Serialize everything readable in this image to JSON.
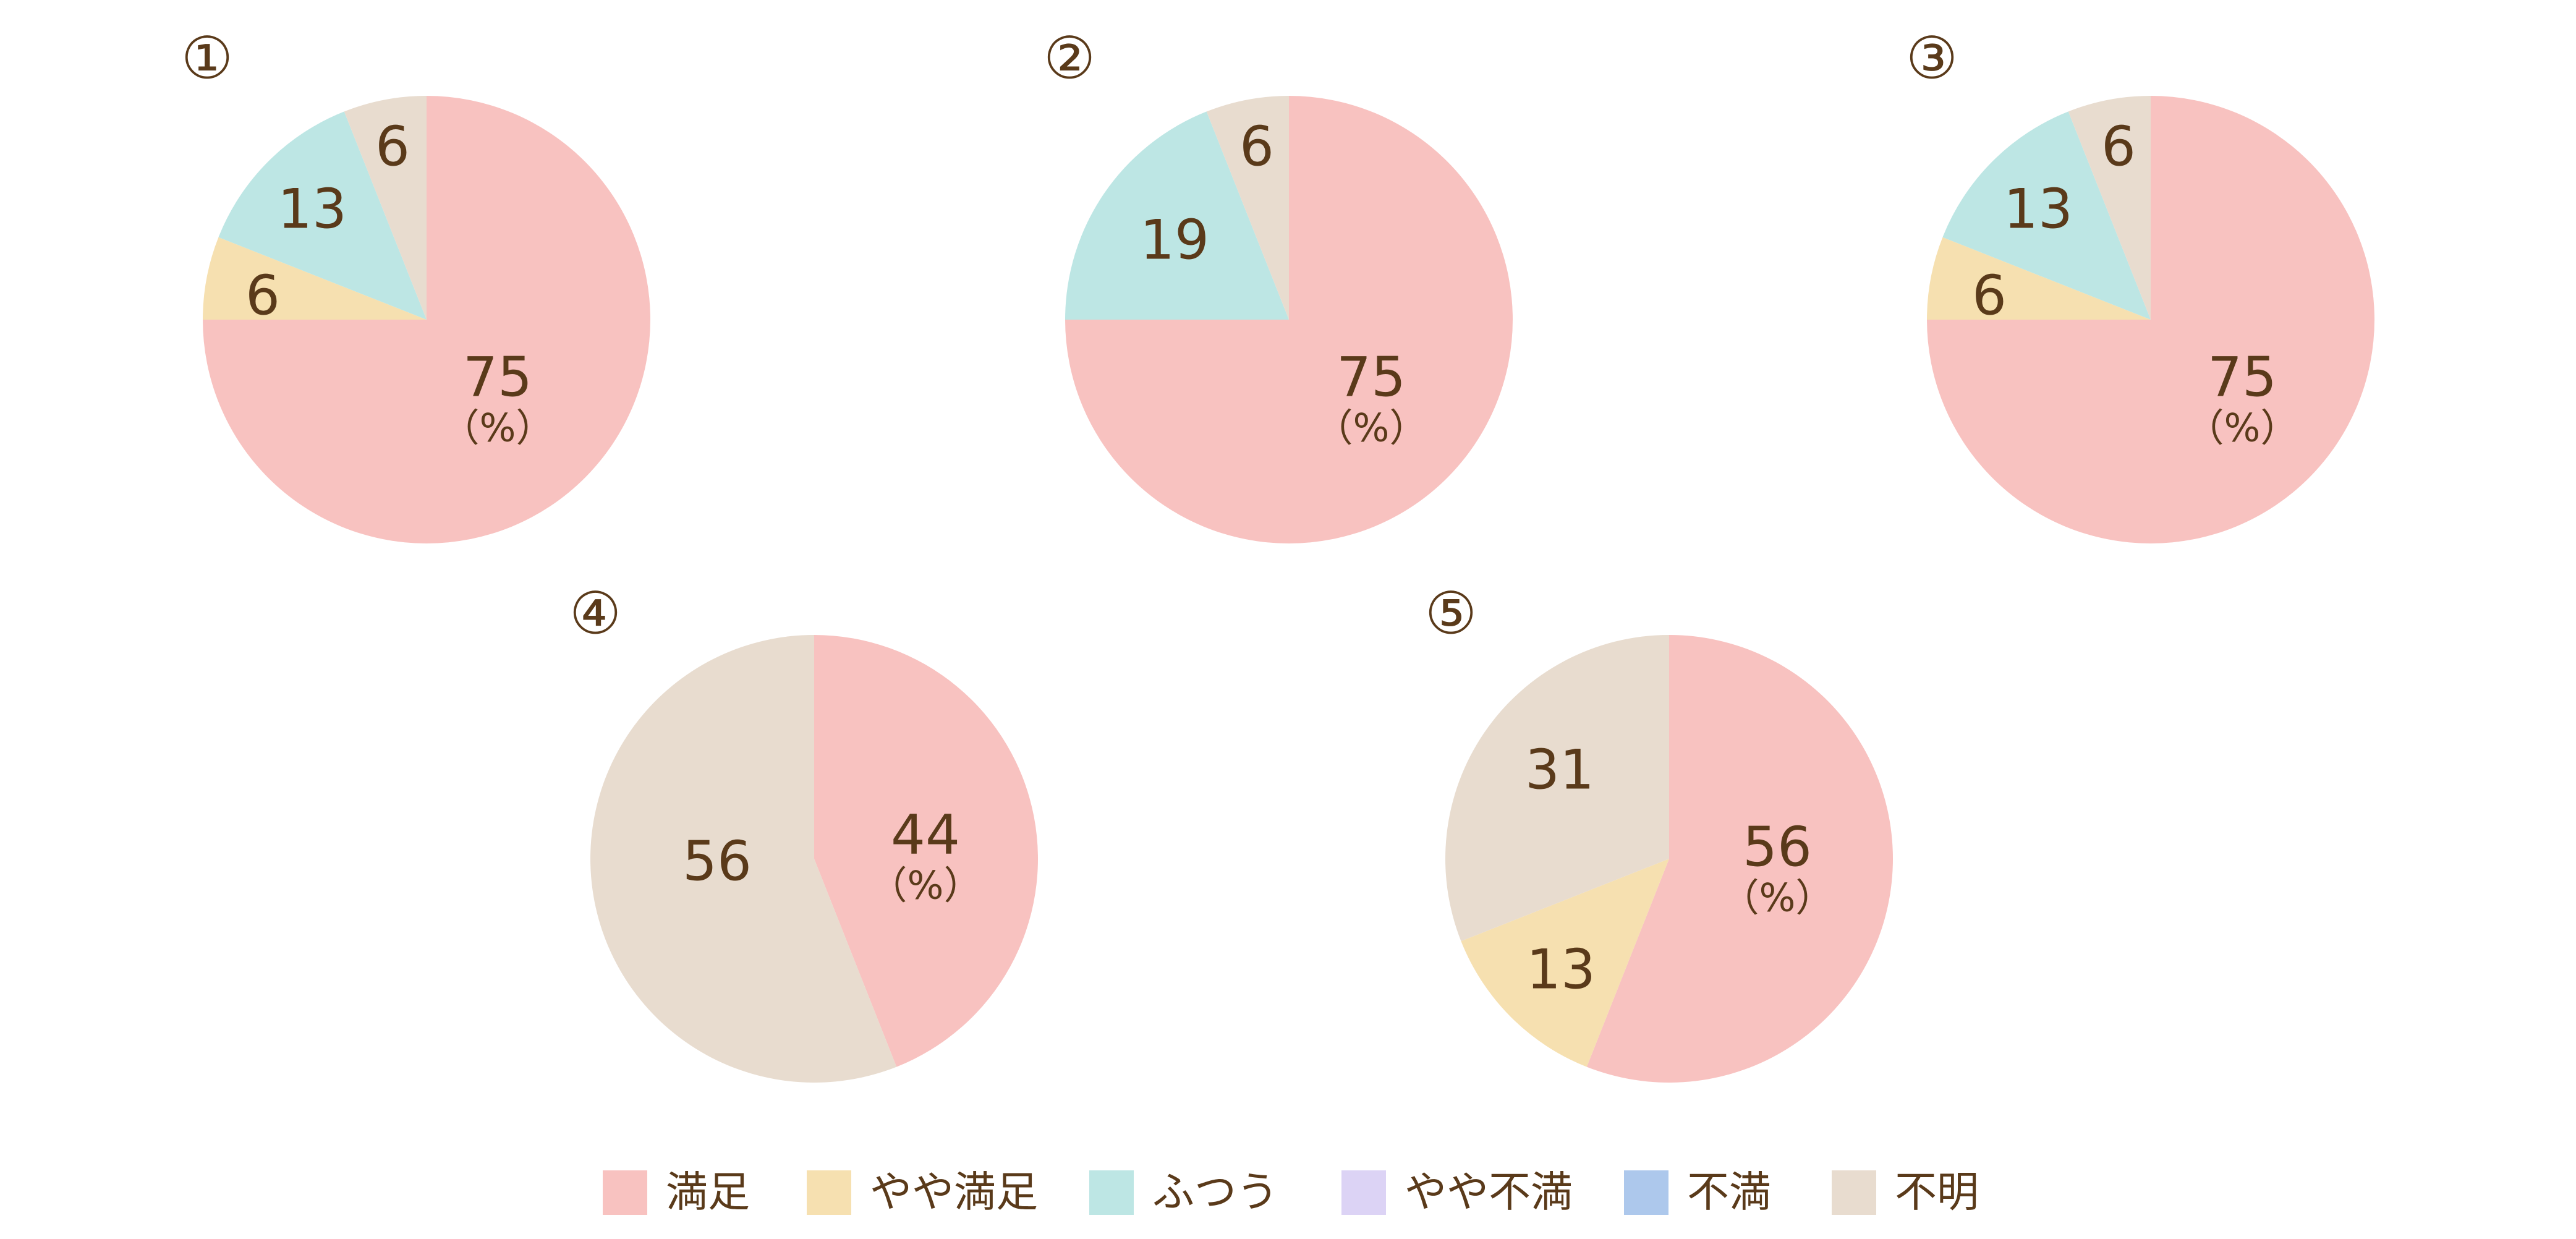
{
  "colors": {
    "満足": "#f8c2c0",
    "やや満足": "#f6e0b0",
    "ふつう": "#bde6e4",
    "やや不満": "#dcd3f5",
    "不満": "#adc8ec",
    "不明": "#e8dccf",
    "text": "#5a3a1a"
  },
  "legend": [
    "満足",
    "やや満足",
    "ふつう",
    "やや不満",
    "不満",
    "不明"
  ],
  "percent_unit": "（%）",
  "chart_data": [
    {
      "type": "pie",
      "number": "①",
      "slices": [
        {
          "category": "満足",
          "value": 75
        },
        {
          "category": "やや満足",
          "value": 6
        },
        {
          "category": "ふつう",
          "value": 13
        },
        {
          "category": "不明",
          "value": 6
        }
      ]
    },
    {
      "type": "pie",
      "number": "②",
      "slices": [
        {
          "category": "満足",
          "value": 75
        },
        {
          "category": "ふつう",
          "value": 19
        },
        {
          "category": "不明",
          "value": 6
        }
      ]
    },
    {
      "type": "pie",
      "number": "③",
      "slices": [
        {
          "category": "満足",
          "value": 75
        },
        {
          "category": "やや満足",
          "value": 6
        },
        {
          "category": "ふつう",
          "value": 13
        },
        {
          "category": "不明",
          "value": 6
        }
      ]
    },
    {
      "type": "pie",
      "number": "④",
      "slices": [
        {
          "category": "満足",
          "value": 44
        },
        {
          "category": "不明",
          "value": 56
        }
      ]
    },
    {
      "type": "pie",
      "number": "⑤",
      "slices": [
        {
          "category": "満足",
          "value": 56
        },
        {
          "category": "やや満足",
          "value": 13
        },
        {
          "category": "不明",
          "value": 31
        }
      ]
    }
  ]
}
